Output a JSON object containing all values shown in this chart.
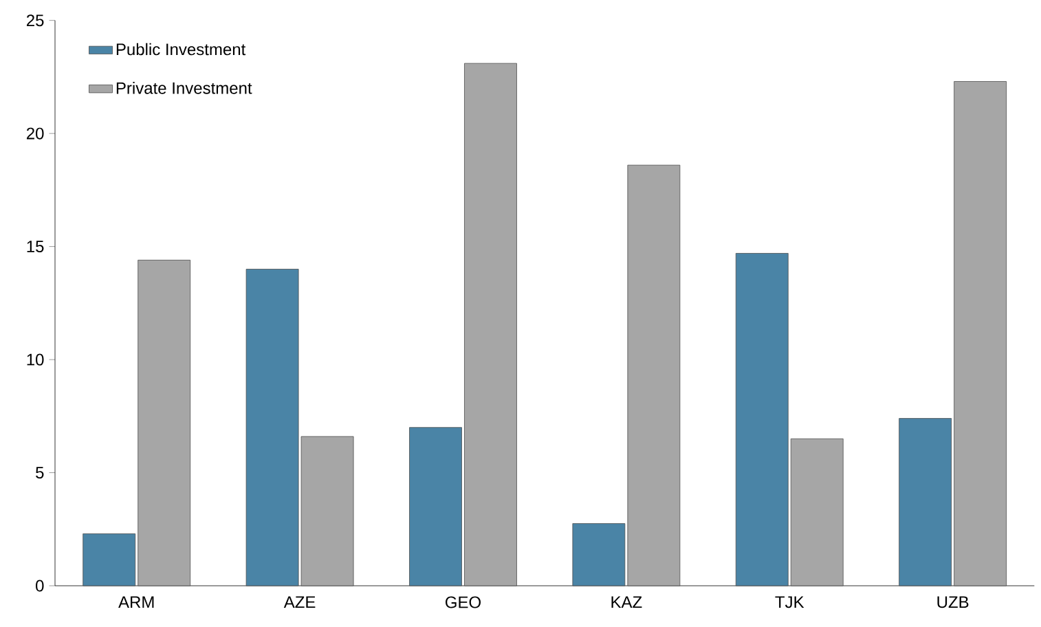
{
  "chart_data": {
    "type": "bar",
    "categories": [
      "ARM",
      "AZE",
      "GEO",
      "KAZ",
      "TJK",
      "UZB"
    ],
    "series": [
      {
        "name": "Public Investment",
        "color": "#4a84a6",
        "values": [
          2.3,
          14.0,
          7.0,
          2.75,
          14.7,
          7.4
        ]
      },
      {
        "name": "Private Investment",
        "color": "#a6a6a6",
        "values": [
          14.4,
          6.6,
          23.1,
          18.6,
          6.5,
          22.3
        ]
      }
    ],
    "ylim": [
      0,
      25
    ],
    "yticks": [
      0,
      5,
      10,
      15,
      20,
      25
    ],
    "grid": false,
    "legend": "top left"
  }
}
